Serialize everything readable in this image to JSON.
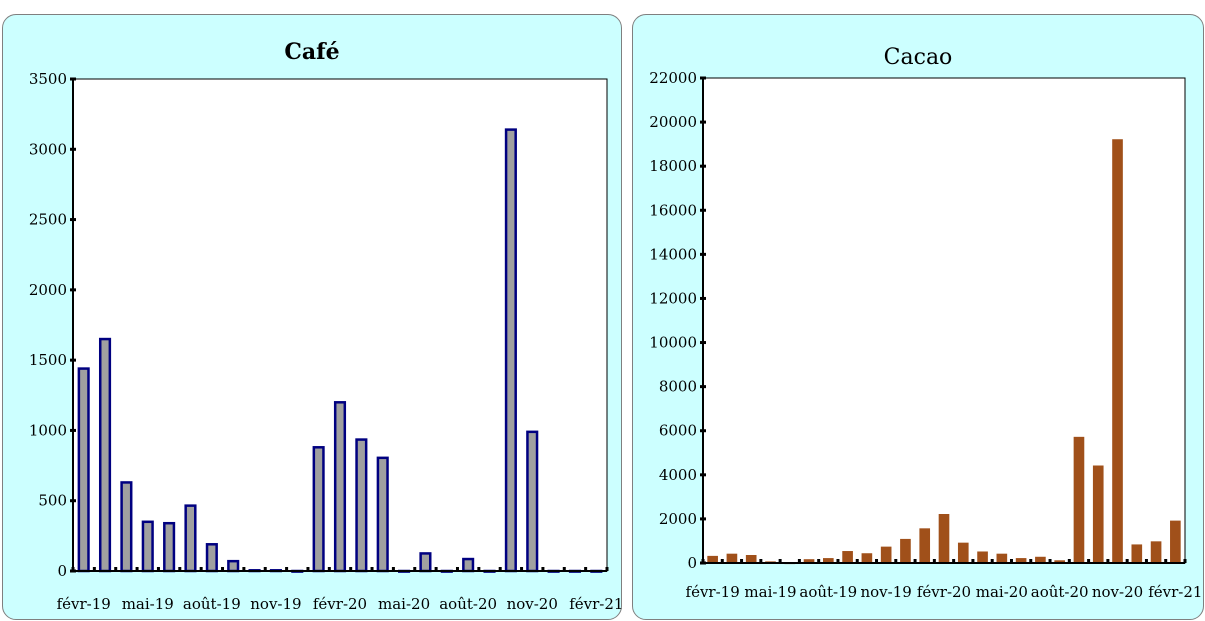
{
  "chart_data": [
    {
      "type": "bar",
      "title": "Café",
      "xlabel": "",
      "ylabel": "",
      "ylim": [
        0,
        3500
      ],
      "yticks": [
        0,
        500,
        1000,
        1500,
        2000,
        2500,
        3000,
        3500
      ],
      "x_tick_labels": [
        "févr-19",
        "mai-19",
        "août-19",
        "nov-19",
        "févr-20",
        "mai-20",
        "août-20",
        "nov-20",
        "févr-21"
      ],
      "categories": [
        "févr-19",
        "mars-19",
        "avr-19",
        "mai-19",
        "juin-19",
        "juil-19",
        "août-19",
        "sept-19",
        "oct-19",
        "nov-19",
        "déc-19",
        "janv-20",
        "févr-20",
        "mars-20",
        "avr-20",
        "mai-20",
        "juin-20",
        "juil-20",
        "août-20",
        "sept-20",
        "oct-20",
        "nov-20",
        "déc-20",
        "janv-21",
        "févr-21"
      ],
      "values": [
        1440,
        1650,
        630,
        350,
        340,
        465,
        190,
        70,
        5,
        5,
        0,
        880,
        1200,
        935,
        805,
        0,
        125,
        0,
        85,
        0,
        3140,
        990,
        0,
        0,
        0
      ],
      "grid": false,
      "bar_color": "#a0a0a0",
      "bar_edge_color": "#000080"
    },
    {
      "type": "bar",
      "title": "Cacao",
      "xlabel": "",
      "ylabel": "",
      "ylim": [
        0,
        22000
      ],
      "yticks": [
        0,
        2000,
        4000,
        6000,
        8000,
        10000,
        12000,
        14000,
        16000,
        18000,
        20000,
        22000
      ],
      "x_tick_labels": [
        "févr-19",
        "mai-19",
        "août-19",
        "nov-19",
        "févr-20",
        "mai-20",
        "août-20",
        "nov-20",
        "févr-21"
      ],
      "categories": [
        "févr-19",
        "mars-19",
        "avr-19",
        "mai-19",
        "juin-19",
        "juil-19",
        "août-19",
        "sept-19",
        "oct-19",
        "nov-19",
        "déc-19",
        "janv-20",
        "févr-20",
        "mars-20",
        "avr-20",
        "mai-20",
        "juin-20",
        "juil-20",
        "août-20",
        "sept-20",
        "oct-20",
        "nov-20",
        "déc-20",
        "janv-21",
        "févr-21"
      ],
      "values": [
        300,
        400,
        340,
        50,
        0,
        150,
        200,
        520,
        420,
        720,
        1070,
        1550,
        2200,
        900,
        500,
        400,
        200,
        260,
        100,
        5700,
        4400,
        19200,
        820,
        960,
        1900
      ],
      "grid": false,
      "bar_color": "#a0501a",
      "bar_edge_color": "#a0501a"
    }
  ]
}
